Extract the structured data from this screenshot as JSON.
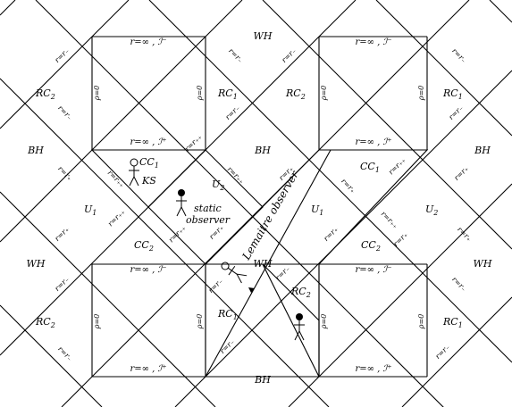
{
  "diagram": {
    "colors": {
      "yellow": "#ffff1a",
      "green": "#99dd11",
      "cyan": "#44eeee",
      "lines": "#000000"
    },
    "labels": {
      "wh": "WH",
      "bh": "BH",
      "rc1": "RC",
      "rc2": "RC",
      "sub1": "1",
      "sub2": "2",
      "cc": "CC",
      "u": "U",
      "r_inf_iminus": "r=∞ , ℐ⁻",
      "r_inf_iplus": "r=∞ , ℐ⁺",
      "r_minus": "r=r₋",
      "r_plus": "r=r₊",
      "r_plusplus": "r=r₊₊",
      "rho0": "ρ=0",
      "ks": "KS",
      "static1": "static",
      "static2": "observer",
      "lemaitre": "Lemaitre observer"
    },
    "icons": [
      "ks-observer-icon",
      "static-observer-icon",
      "lemaitre-observer-icon",
      "bh-observer-icon"
    ]
  }
}
